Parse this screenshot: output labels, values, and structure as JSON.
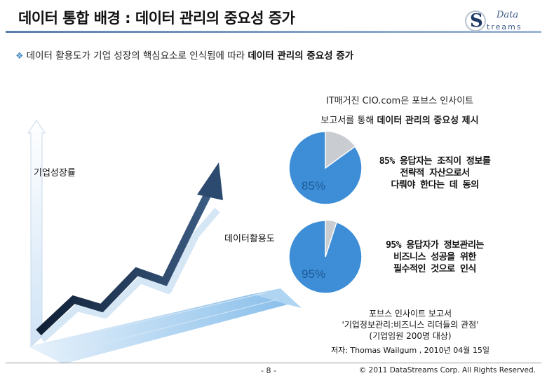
{
  "header": {
    "title": "데이터 통합 배경 : 데이터 관리의 중요성 증가",
    "logo_text_top": "Data",
    "logo_text_bottom": "treams",
    "logo_letter": "S"
  },
  "bullet": {
    "prefix": "데이터 활용도가 기업 성장의 핵심요소로 인식됨에 따라 ",
    "emphasis": "데이터 관리의 중요성 증가"
  },
  "intro": {
    "line1": "IT매거진 CIO.com은 포브스 인사이트",
    "line2_prefix": "보고서를 통해 ",
    "line2_emphasis": "데이터 관리의 중요성 제시"
  },
  "figure": {
    "label_growth": "기업성장률",
    "label_usage": "데이터활용도"
  },
  "pies": [
    {
      "percent": 85,
      "label": "85%",
      "text_lines": [
        "85% 응답자는 조직이 정보를",
        "전략적 자산으로서",
        "다뤄야 한다는 데 동의"
      ]
    },
    {
      "percent": 95,
      "label": "95%",
      "text_lines": [
        "95% 응답자가 정보관리는",
        "비즈니스 성공을 위한",
        "필수적인 것으로 인식"
      ]
    }
  ],
  "source": {
    "line1": "포브스 인사이트 보고서",
    "line2": "'기업정보관리:비즈니스 리더들의 관점'",
    "line3": "(기업임원 200명 대상)",
    "cite": "저자: Thomas Wailgum , 2010년 04월 15일"
  },
  "footer": {
    "page": "- 8 -",
    "copyright": "© 2011 DataStreams Corp. All Rights Reserved."
  },
  "colors": {
    "accent": "#3c8fd0",
    "pie_blue": "#3d8ed6",
    "pie_gray": "#c9ccd1",
    "arrow": "#1f3550"
  }
}
